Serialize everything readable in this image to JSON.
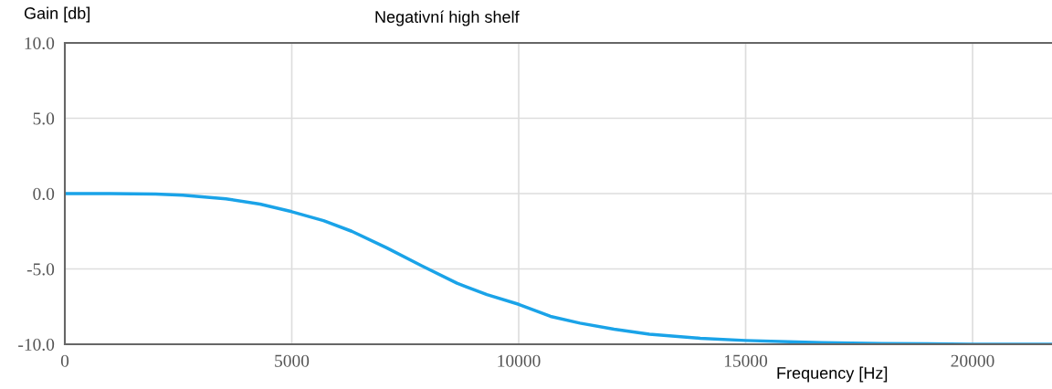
{
  "chart_data": {
    "type": "line",
    "title": "Negativní high shelf",
    "xlabel": "Frequency [Hz]",
    "ylabel": "Gain [db]",
    "x": [
      0,
      1000,
      2000,
      2600,
      3550,
      4300,
      5000,
      5700,
      6320,
      7090,
      7870,
      8640,
      9300,
      10000,
      10700,
      11350,
      12100,
      12880,
      14000,
      15000,
      16680,
      18000,
      20000,
      21750
    ],
    "series": [
      {
        "color": "#1aa3e8",
        "values": [
          0,
          0,
          -0.03,
          -0.1,
          -0.35,
          -0.7,
          -1.2,
          -1.8,
          -2.5,
          -3.6,
          -4.8,
          -5.95,
          -6.7,
          -7.35,
          -8.15,
          -8.6,
          -9.0,
          -9.33,
          -9.6,
          -9.75,
          -9.9,
          -9.95,
          -10,
          -10
        ]
      }
    ],
    "xlim": [
      0,
      21750
    ],
    "ylim": [
      -10,
      10
    ],
    "xticks": [
      0,
      5000,
      10000,
      15000,
      20000
    ],
    "yticks": [
      {
        "value": -10,
        "label": "-10.0"
      },
      {
        "value": -5,
        "label": "-5.0"
      },
      {
        "value": 0,
        "label": "0.0"
      },
      {
        "value": 5,
        "label": "5.0"
      },
      {
        "value": 10,
        "label": "10.0"
      }
    ],
    "grid": true,
    "marker": "none",
    "line_style": "solid"
  }
}
